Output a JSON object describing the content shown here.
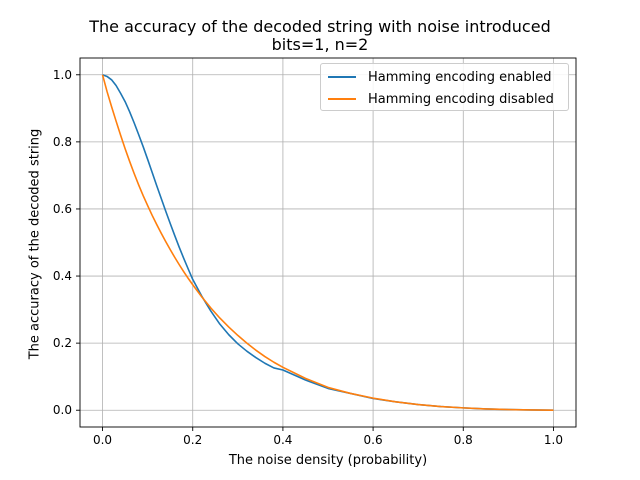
{
  "chart_data": {
    "type": "line",
    "title": "The accuracy of the decoded string with noise introduced",
    "subtitle": "bits=1, n=2",
    "xlabel": "The noise density (probability)",
    "ylabel": "The accuracy of the decoded string",
    "xlim": [
      -0.05,
      1.05
    ],
    "ylim": [
      -0.05,
      1.05
    ],
    "x_ticks": [
      "0.0",
      "0.2",
      "0.4",
      "0.6",
      "0.8",
      "1.0"
    ],
    "y_ticks": [
      "0.0",
      "0.2",
      "0.4",
      "0.6",
      "0.8",
      "1.0"
    ],
    "grid": true,
    "legend_position": "top-right",
    "series": [
      {
        "name": "Hamming encoding enabled",
        "color": "#1f77b4",
        "x": [
          0.0,
          0.01,
          0.02,
          0.03,
          0.04,
          0.05,
          0.06,
          0.07,
          0.08,
          0.09,
          0.1,
          0.11,
          0.12,
          0.13,
          0.14,
          0.15,
          0.16,
          0.17,
          0.18,
          0.19,
          0.2,
          0.22,
          0.24,
          0.26,
          0.28,
          0.3,
          0.32,
          0.34,
          0.36,
          0.38,
          0.4,
          0.45,
          0.5,
          0.55,
          0.6,
          0.65,
          0.7,
          0.75,
          0.8,
          0.85,
          0.9,
          0.95,
          1.0
        ],
        "y": [
          1.0,
          0.995,
          0.985,
          0.968,
          0.945,
          0.92,
          0.89,
          0.857,
          0.822,
          0.786,
          0.748,
          0.709,
          0.67,
          0.632,
          0.594,
          0.557,
          0.521,
          0.486,
          0.453,
          0.421,
          0.39,
          0.34,
          0.296,
          0.257,
          0.225,
          0.198,
          0.176,
          0.157,
          0.14,
          0.126,
          0.12,
          0.09,
          0.065,
          0.05,
          0.035,
          0.025,
          0.017,
          0.011,
          0.007,
          0.004,
          0.002,
          0.001,
          0.0
        ]
      },
      {
        "name": "Hamming encoding disabled",
        "color": "#ff7f0e",
        "x": [
          0.0,
          0.01,
          0.02,
          0.03,
          0.04,
          0.05,
          0.06,
          0.07,
          0.08,
          0.09,
          0.1,
          0.11,
          0.12,
          0.13,
          0.14,
          0.15,
          0.16,
          0.17,
          0.18,
          0.19,
          0.2,
          0.22,
          0.24,
          0.26,
          0.28,
          0.3,
          0.32,
          0.34,
          0.36,
          0.38,
          0.4,
          0.45,
          0.5,
          0.55,
          0.6,
          0.65,
          0.7,
          0.75,
          0.8,
          0.85,
          0.9,
          0.95,
          1.0
        ],
        "y": [
          1.0,
          0.95,
          0.905,
          0.862,
          0.82,
          0.78,
          0.742,
          0.706,
          0.672,
          0.64,
          0.61,
          0.581,
          0.554,
          0.528,
          0.503,
          0.479,
          0.456,
          0.434,
          0.413,
          0.393,
          0.374,
          0.338,
          0.305,
          0.275,
          0.248,
          0.223,
          0.2,
          0.179,
          0.16,
          0.143,
          0.128,
          0.095,
          0.068,
          0.05,
          0.036,
          0.025,
          0.017,
          0.011,
          0.007,
          0.004,
          0.002,
          0.001,
          0.0
        ]
      }
    ]
  }
}
